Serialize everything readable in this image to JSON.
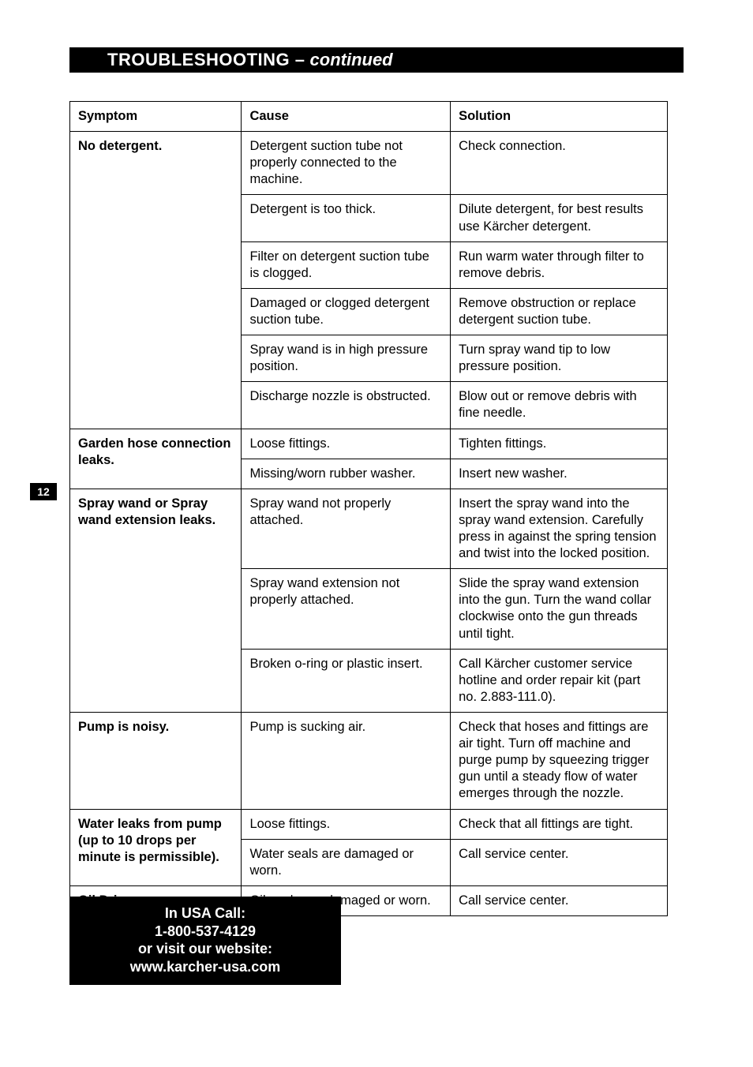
{
  "page_number": "12",
  "title": {
    "main": "TROUBLESHOOTING –",
    "sub": "continued"
  },
  "table": {
    "headers": {
      "symptom": "Symptom",
      "cause": "Cause",
      "solution": "Solution"
    },
    "groups": [
      {
        "symptom": "No detergent.",
        "rows": [
          {
            "cause": "Detergent suction tube not properly connected to the machine.",
            "solution": "Check connection."
          },
          {
            "cause": "Detergent is too thick.",
            "solution": "Dilute detergent, for best results use Kärcher detergent."
          },
          {
            "cause": "Filter on detergent suction tube is clogged.",
            "solution": "Run warm water through filter to remove debris."
          },
          {
            "cause": "Damaged or clogged detergent suction tube.",
            "solution": "Remove obstruction or replace detergent suction tube."
          },
          {
            "cause": "Spray wand is in high pressure position.",
            "solution": "Turn spray wand tip to low pressure position."
          },
          {
            "cause": "Discharge nozzle is obstructed.",
            "solution": "Blow out or remove debris with fine needle."
          }
        ]
      },
      {
        "symptom": "Garden hose connection leaks.",
        "rows": [
          {
            "cause": "Loose fittings.",
            "solution": "Tighten fittings."
          },
          {
            "cause": "Missing/worn rubber washer.",
            "solution": "Insert new washer."
          }
        ]
      },
      {
        "symptom": "Spray wand or Spray wand extension leaks.",
        "rows": [
          {
            "cause": "Spray wand not properly attached.",
            "solution": "Insert the spray wand into the spray wand extension. Carefully press in against the spring tension and twist into the locked position.",
            "justify": true
          },
          {
            "cause": "Spray wand extension not properly attached.",
            "solution": "Slide the spray wand extension into the gun. Turn the wand collar clockwise onto the gun threads until tight."
          },
          {
            "cause": "Broken o-ring or plastic insert.",
            "solution": "Call Kärcher customer service hotline and order repair kit (part no. 2.883-111.0)."
          }
        ]
      },
      {
        "symptom": "Pump is noisy.",
        "rows": [
          {
            "cause": "Pump is sucking air.",
            "solution": "Check that hoses and fittings are air tight. Turn off machine and purge pump by squeezing trigger gun until a steady flow of water emerges through the nozzle."
          }
        ]
      },
      {
        "symptom": "Water leaks from pump (up to 10 drops per minute is permissible).",
        "rows": [
          {
            "cause": "Loose fittings.",
            "solution": "Check that all fittings are tight."
          },
          {
            "cause": "Water seals are damaged or worn.",
            "solution": "Call service center."
          }
        ]
      },
      {
        "symptom": "Oil Drip.",
        "rows": [
          {
            "cause": "Oil seals are damaged or worn.",
            "solution": "Call service center."
          }
        ]
      }
    ]
  },
  "contact": {
    "line1": "In USA Call:",
    "phone": "1-800-537-4129",
    "line2": "or visit our website:",
    "site": "www.karcher-usa.com"
  }
}
